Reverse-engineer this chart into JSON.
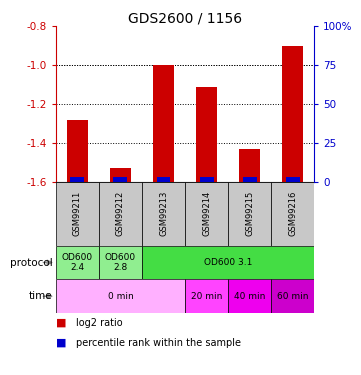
{
  "title": "GDS2600 / 1156",
  "samples": [
    "GSM99211",
    "GSM99212",
    "GSM99213",
    "GSM99214",
    "GSM99215",
    "GSM99216"
  ],
  "log2_values": [
    -1.28,
    -1.53,
    -1.0,
    -1.11,
    -1.43,
    -0.9
  ],
  "percentile_pct": [
    3,
    3,
    3,
    3,
    3,
    3
  ],
  "bar_bottom": -1.6,
  "left_ylim": [
    -1.6,
    -0.8
  ],
  "right_ylim": [
    0,
    100
  ],
  "left_yticks": [
    -1.6,
    -1.4,
    -1.2,
    -1.0,
    -0.8
  ],
  "right_yticks": [
    0,
    25,
    50,
    75,
    100
  ],
  "left_yticklabels": [
    "-1.6",
    "-1.4",
    "-1.2",
    "-1.0",
    "-0.8"
  ],
  "right_yticklabels": [
    "0",
    "25",
    "50",
    "75",
    "100%"
  ],
  "red_color": "#CC0000",
  "blue_color": "#0000CC",
  "bar_width": 0.5,
  "sample_box_color": "#C8C8C8",
  "protocol_data": [
    [
      0,
      1,
      "#90EE90",
      "OD600\n2.4"
    ],
    [
      1,
      2,
      "#90EE90",
      "OD600\n2.8"
    ],
    [
      2,
      6,
      "#44DD44",
      "OD600 3.1"
    ]
  ],
  "time_data": [
    [
      0,
      3,
      "#FFB0FF",
      "0 min"
    ],
    [
      3,
      4,
      "#FF44FF",
      "20 min"
    ],
    [
      4,
      5,
      "#EE00EE",
      "40 min"
    ],
    [
      5,
      6,
      "#CC00CC",
      "60 min"
    ]
  ],
  "legend_items": [
    [
      "#CC0000",
      "log2 ratio"
    ],
    [
      "#0000CC",
      "percentile rank within the sample"
    ]
  ]
}
